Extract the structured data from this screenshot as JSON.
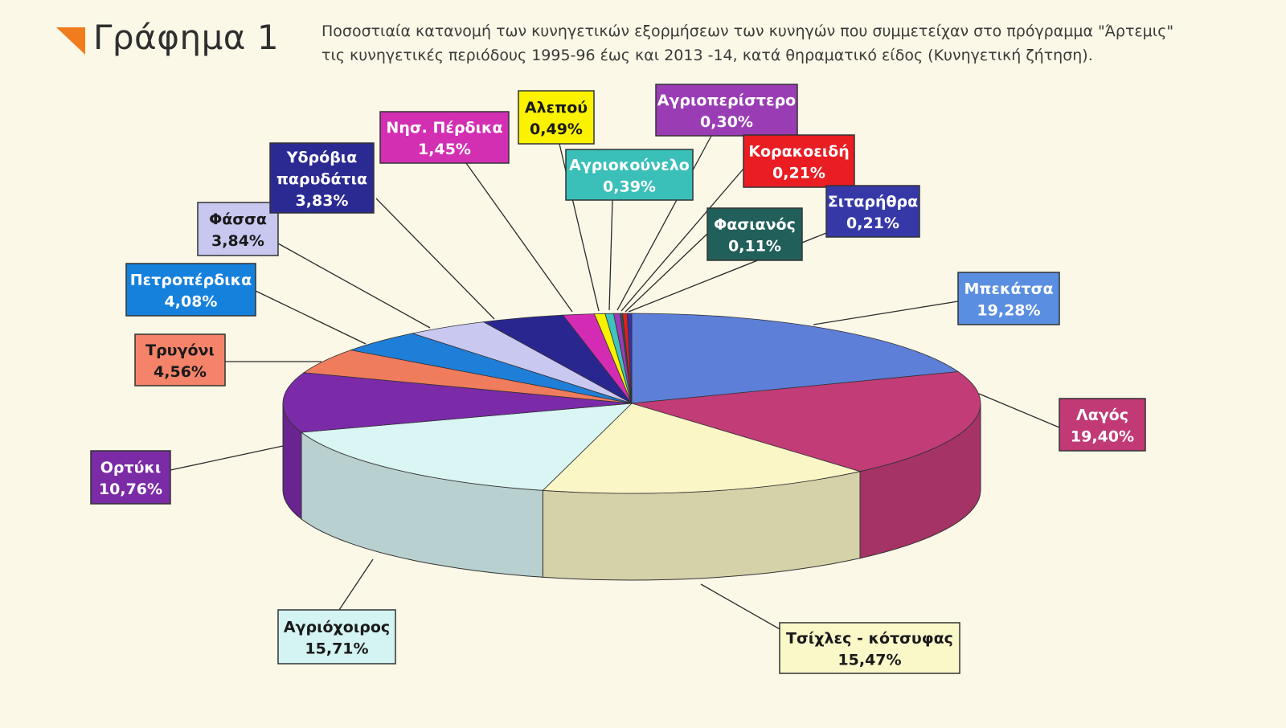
{
  "header": {
    "title": "Γράφημα 1",
    "subtitle_line1": "Ποσοστιαία κατανομή των κυνηγετικών εξορμήσεων των κυνηγών που συμμετείχαν στο πρόγραμμα \"Άρτεμις\"",
    "subtitle_line2": "τις κυνηγετικές περιόδους 1995-96 έως και 2013 -14, κατά θηραματικό είδος (Κυνηγετική ζήτηση)."
  },
  "colors": {
    "title_mark": "#f07c1e"
  },
  "chart_data": {
    "type": "pie",
    "style": "3d",
    "legend": "none",
    "slices": [
      {
        "name": "Μπεκάτσα",
        "value": 19.28,
        "label": "19,28%",
        "color": "#5d7fd8",
        "label_bg": "#5a8ee0",
        "label_fg": "#ffffff"
      },
      {
        "name": "Λαγός",
        "value": 19.4,
        "label": "19,40%",
        "color": "#c23c77",
        "label_bg": "#c13a76",
        "label_fg": "#ffffff"
      },
      {
        "name": "Τσίχλες - κότσυφας",
        "value": 15.47,
        "label": "15,47%",
        "color": "#fbf6c6",
        "label_bg": "#faf7c9",
        "label_fg": "#1a1a1a"
      },
      {
        "name": "Αγριόχοιρος",
        "value": 15.71,
        "label": "15,71%",
        "color": "#d9f5f4",
        "label_bg": "#d4f3f3",
        "label_fg": "#1a1a1a"
      },
      {
        "name": "Ορτύκι",
        "value": 10.76,
        "label": "10,76%",
        "color": "#7b2aa8",
        "label_bg": "#7a2ba5",
        "label_fg": "#ffffff"
      },
      {
        "name": "Τρυγόνι",
        "value": 4.56,
        "label": "4,56%",
        "color": "#f07c5e",
        "label_bg": "#f4836a",
        "label_fg": "#1a1a1a"
      },
      {
        "name": "Πετροπέρδικα",
        "value": 4.08,
        "label": "4,08%",
        "color": "#1f7fd8",
        "label_bg": "#1581dc",
        "label_fg": "#ffffff"
      },
      {
        "name": "Φάσσα",
        "value": 3.84,
        "label": "3,84%",
        "color": "#c9c8f1",
        "label_bg": "#c7c7f0",
        "label_fg": "#1a1a1a"
      },
      {
        "name": "Υδρόβια παρυδάτια",
        "value": 3.83,
        "label": "3,83%",
        "color": "#2a2690",
        "label_bg": "#2b2a93",
        "label_fg": "#ffffff"
      },
      {
        "name": "Νησ. Πέρδικα",
        "value": 1.45,
        "label": "1,45%",
        "color": "#d42bb4",
        "label_bg": "#d22fb3",
        "label_fg": "#ffffff"
      },
      {
        "name": "Αλεπού",
        "value": 0.49,
        "label": "0,49%",
        "color": "#f7f200",
        "label_bg": "#fbf200",
        "label_fg": "#1a1a1a"
      },
      {
        "name": "Αγριοκούνελο",
        "value": 0.39,
        "label": "0,39%",
        "color": "#3ec3bd",
        "label_bg": "#3bbfb9",
        "label_fg": "#ffffff"
      },
      {
        "name": "Αγριοπερίστερο",
        "value": 0.3,
        "label": "0,30%",
        "color": "#9b3cb8",
        "label_bg": "#9a3db5",
        "label_fg": "#ffffff"
      },
      {
        "name": "Φασιανός",
        "value": 0.11,
        "label": "0,11%",
        "color": "#1f5a56",
        "label_bg": "#21605a",
        "label_fg": "#ffffff"
      },
      {
        "name": "Κορακοειδή",
        "value": 0.21,
        "label": "0,21%",
        "color": "#e81c1c",
        "label_bg": "#ea1d23",
        "label_fg": "#ffffff"
      },
      {
        "name": "Σιταρήθρα",
        "value": 0.21,
        "label": "0,21%",
        "color": "#3434a6",
        "label_bg": "#3638a8",
        "label_fg": "#ffffff"
      }
    ]
  }
}
